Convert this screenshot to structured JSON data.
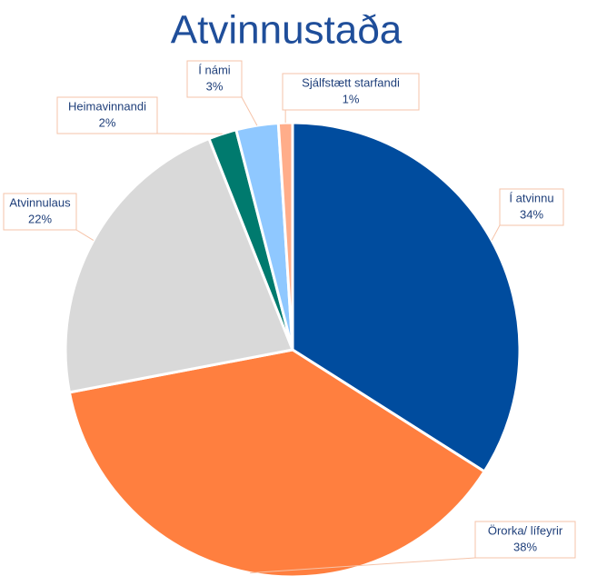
{
  "chart_data": {
    "type": "pie",
    "title": "Atvinnustaða",
    "categories": [
      "Í atvinnu",
      "Örorka/ lífeyrir",
      "Atvinnulaus",
      "Heimavinnandi",
      "Í námi",
      "Sjálfstætt starfandi"
    ],
    "values": [
      34,
      38,
      22,
      2,
      3,
      1
    ],
    "value_labels": [
      "34%",
      "38%",
      "22%",
      "2%",
      "3%",
      "1%"
    ],
    "colors": [
      "#004c9e",
      "#ff7f3f",
      "#d9d9d9",
      "#007a6e",
      "#8fc8ff",
      "#ffad8a"
    ]
  }
}
